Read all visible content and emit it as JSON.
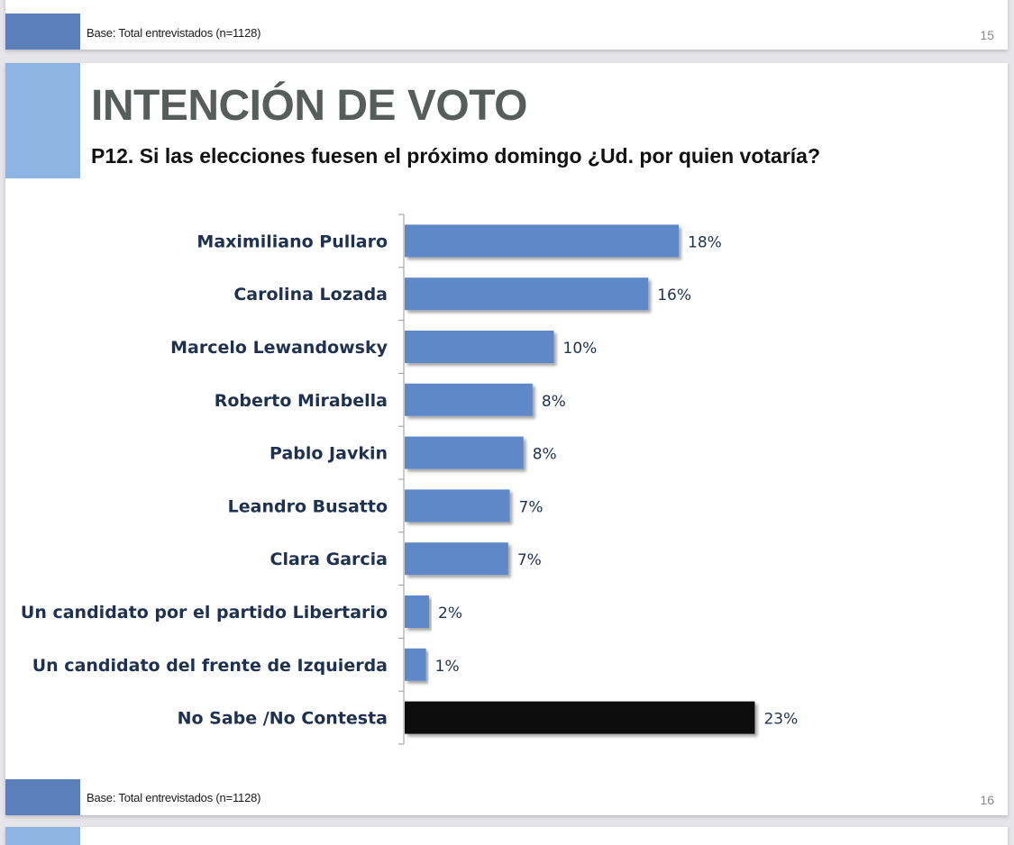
{
  "slides": {
    "previous": {
      "footer": "Base: Total entrevistados (n=1128)",
      "page_number": "15"
    },
    "current": {
      "title": "INTENCIÓN DE VOTO",
      "subtitle": "P12. Si las elecciones fuesen el próximo domingo ¿Ud. por quien votaría?",
      "footer": "Base: Total entrevistados (n=1128)",
      "page_number": "16"
    }
  },
  "colors": {
    "bar": "#5f88c9",
    "highlight_bar": "#0d0d0d",
    "label": "#1f3150",
    "value": "#1f3150",
    "accent_light": "#8db4e2",
    "accent_dark": "#5b7fbb"
  },
  "chart_data": {
    "type": "bar",
    "orientation": "horizontal",
    "title": "INTENCIÓN DE VOTO",
    "subtitle": "P12. Si las elecciones fuesen el próximo domingo ¿Ud. por quien votaría?",
    "xlabel": "",
    "ylabel": "",
    "xlim": [
      0,
      25
    ],
    "grid": false,
    "legend": "none",
    "categories": [
      "Maximiliano Pullaro",
      "Carolina Lozada",
      "Marcelo Lewandowsky",
      "Roberto Mirabella",
      "Pablo Javkin",
      "Leandro Busatto",
      "Clara Garcia",
      "Un candidato por el partido Libertario",
      "Un candidato del frente de Izquierda",
      "No Sabe /No Contesta"
    ],
    "values": [
      18.0,
      16.0,
      9.8,
      8.4,
      7.8,
      6.9,
      6.8,
      1.6,
      1.4,
      23.0
    ],
    "value_labels": [
      "18%",
      "16%",
      "10%",
      "8%",
      "8%",
      "7%",
      "7%",
      "2%",
      "1%",
      "23%"
    ],
    "highlight": [
      false,
      false,
      false,
      false,
      false,
      false,
      false,
      false,
      false,
      true
    ]
  }
}
